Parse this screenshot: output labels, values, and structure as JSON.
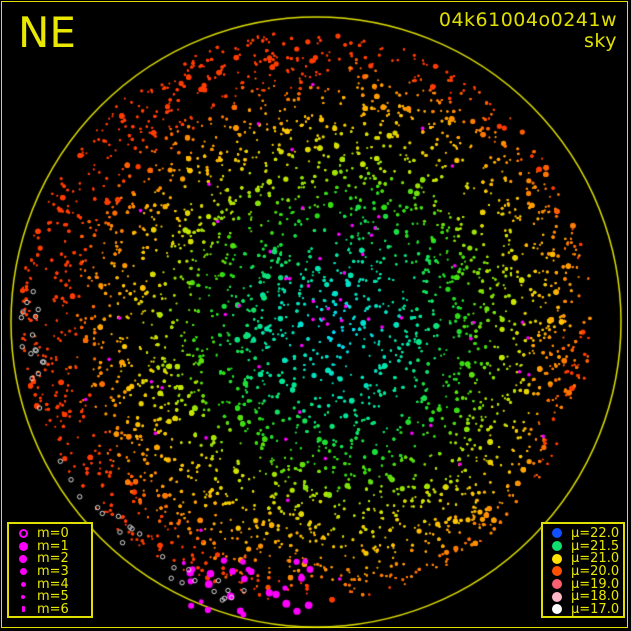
{
  "title": {
    "direction": "NE",
    "frame_id": "04k61004o0241w",
    "subtitle": "sky"
  },
  "colors": {
    "frame": "#e0e000",
    "background": "#000000",
    "magnitude_symbol": "#ff00ff"
  },
  "magnitude_legend": [
    {
      "label": "m=0",
      "style": "ring"
    },
    {
      "label": "m=1",
      "style": "filled"
    },
    {
      "label": "m=2",
      "style": "filled"
    },
    {
      "label": "m=3",
      "style": "filled"
    },
    {
      "label": "m=4",
      "style": "filled"
    },
    {
      "label": "m=5",
      "style": "filled"
    },
    {
      "label": "m=6",
      "style": "filled"
    }
  ],
  "sky_brightness_legend": [
    {
      "label": "μ=22.0",
      "color": "#1050ff"
    },
    {
      "label": "μ=21.5",
      "color": "#10e070"
    },
    {
      "label": "μ=21.0",
      "color": "#ffe000"
    },
    {
      "label": "μ=20.0",
      "color": "#ff5000"
    },
    {
      "label": "μ=19.0",
      "color": "#ff6070"
    },
    {
      "label": "μ=18.0",
      "color": "#ffb8c8"
    },
    {
      "label": "μ=17.0",
      "color": "#ffffff"
    }
  ]
}
